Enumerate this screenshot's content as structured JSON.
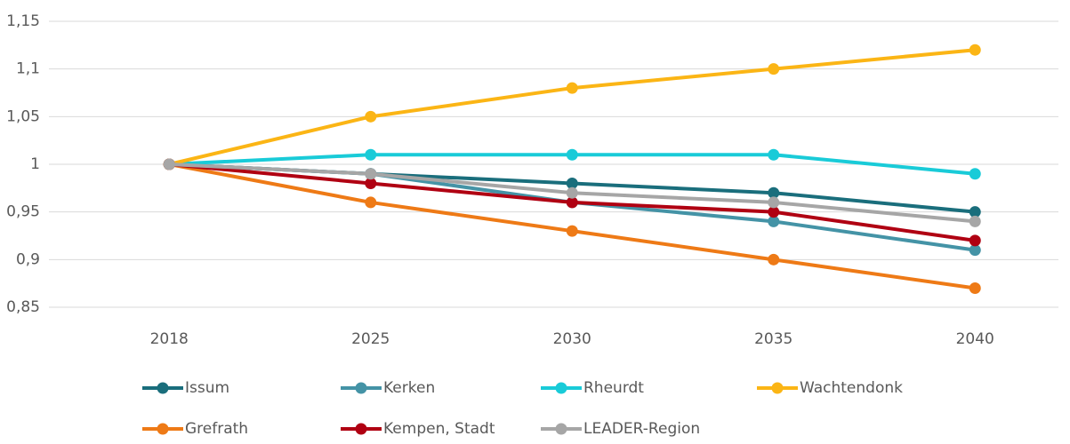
{
  "chart_data": {
    "type": "line",
    "categories": [
      "2018",
      "2025",
      "2030",
      "2035",
      "2040"
    ],
    "series": [
      {
        "name": "Issum",
        "color": "#1a6e7c",
        "values": [
          1,
          0.99,
          0.98,
          0.97,
          0.95
        ]
      },
      {
        "name": "Kerken",
        "color": "#4493a6",
        "values": [
          1,
          0.99,
          0.96,
          0.94,
          0.91
        ]
      },
      {
        "name": "Rheurdt",
        "color": "#19cbd8",
        "values": [
          1,
          1.01,
          1.01,
          1.01,
          0.99
        ]
      },
      {
        "name": "Wachtendonk",
        "color": "#fbb515",
        "values": [
          1,
          1.05,
          1.08,
          1.1,
          1.12
        ]
      },
      {
        "name": "Grefrath",
        "color": "#ee7a16",
        "values": [
          1,
          0.96,
          0.93,
          0.9,
          0.87
        ]
      },
      {
        "name": "Kempen, Stadt",
        "color": "#b00012",
        "values": [
          1,
          0.98,
          0.96,
          0.95,
          0.92
        ]
      },
      {
        "name": "LEADER-Region",
        "color": "#a6a6a6",
        "values": [
          1,
          0.99,
          0.97,
          0.96,
          0.94
        ]
      }
    ],
    "ylim": [
      0.85,
      1.15
    ],
    "yticks": [
      {
        "value": 0.85,
        "label": "0,85"
      },
      {
        "value": 0.9,
        "label": "0,9"
      },
      {
        "value": 0.95,
        "label": "0,95"
      },
      1,
      {
        "value": 1.05,
        "label": "1,05"
      },
      {
        "value": 1.1,
        "label": "1,1"
      },
      {
        "value": 1.15,
        "label": "1,15"
      }
    ],
    "grid": true,
    "legend": "bottom"
  }
}
